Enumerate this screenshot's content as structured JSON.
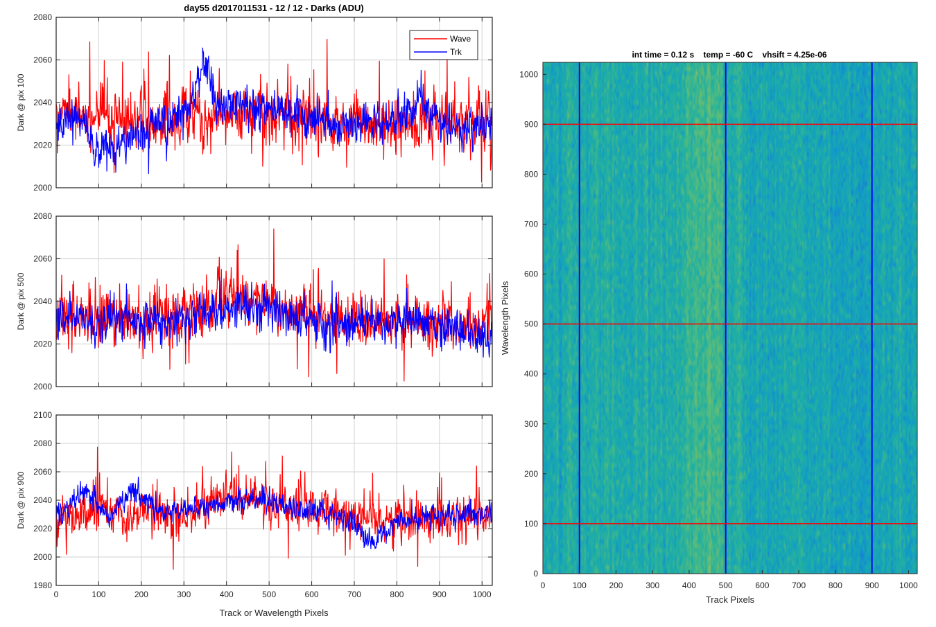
{
  "figure": {
    "title": "day55 d2017011531 - 12 / 12 - Darks (ADU)",
    "right_title": "int time = 0.12 s    temp = -60 C    vhsift = 4.25e-06",
    "left_xlabel": "Track or Wavelength Pixels"
  },
  "colors": {
    "wave": "#ff0000",
    "trk": "#0000ff",
    "grid": "#d9d9d9",
    "axis": "#262626"
  },
  "chart_data": [
    {
      "type": "line",
      "ylabel": "Dark @ pix 100",
      "xlim": [
        0,
        1024
      ],
      "ylim": [
        2000,
        2080
      ],
      "xticks": [
        0,
        100,
        200,
        300,
        400,
        500,
        600,
        700,
        800,
        900,
        1000
      ],
      "yticks": [
        2000,
        2020,
        2040,
        2060,
        2080
      ],
      "grid": true,
      "legend": {
        "location": "top-right",
        "entries": [
          "Wave",
          "Trk"
        ]
      },
      "series": [
        {
          "name": "Wave",
          "color": "#ff0000",
          "mean": 2033,
          "noise": 8.5,
          "spike_rate": 0.05,
          "spike_amp": 16,
          "trend_x": [
            0,
            100,
            200,
            300,
            400,
            500,
            600,
            700,
            800,
            900,
            1024
          ],
          "trend_y": [
            2033,
            2033,
            2031,
            2032,
            2036,
            2036,
            2032,
            2031,
            2030,
            2031,
            2032
          ]
        },
        {
          "name": "Trk",
          "color": "#0000ff",
          "mean": 2032,
          "noise": 5.5,
          "spike_rate": 0.015,
          "spike_amp": 10,
          "trend_x": [
            0,
            60,
            100,
            140,
            200,
            260,
            320,
            345,
            380,
            460,
            560,
            620,
            700,
            800,
            860,
            900,
            950,
            1024
          ],
          "trend_y": [
            2030,
            2032,
            2018,
            2020,
            2026,
            2030,
            2040,
            2058,
            2040,
            2038,
            2036,
            2032,
            2030,
            2032,
            2040,
            2030,
            2026,
            2030
          ]
        }
      ]
    },
    {
      "type": "line",
      "ylabel": "Dark @ pix 500",
      "xlim": [
        0,
        1024
      ],
      "ylim": [
        2000,
        2080
      ],
      "xticks": [
        0,
        100,
        200,
        300,
        400,
        500,
        600,
        700,
        800,
        900,
        1000
      ],
      "yticks": [
        2000,
        2020,
        2040,
        2060,
        2080
      ],
      "grid": true,
      "series": [
        {
          "name": "Wave",
          "color": "#ff0000",
          "mean": 2032,
          "noise": 8,
          "spike_rate": 0.05,
          "spike_amp": 18,
          "trend_x": [
            0,
            100,
            200,
            300,
            400,
            500,
            600,
            700,
            800,
            900,
            1024
          ],
          "trend_y": [
            2032,
            2031,
            2030,
            2034,
            2044,
            2040,
            2033,
            2029,
            2030,
            2030,
            2030
          ]
        },
        {
          "name": "Trk",
          "color": "#0000ff",
          "mean": 2031,
          "noise": 6,
          "spike_rate": 0.015,
          "spike_amp": 10,
          "trend_x": [
            0,
            100,
            200,
            300,
            400,
            500,
            600,
            700,
            800,
            900,
            1024
          ],
          "trend_y": [
            2031,
            2032,
            2030,
            2033,
            2038,
            2036,
            2031,
            2028,
            2030,
            2030,
            2022
          ]
        }
      ]
    },
    {
      "type": "line",
      "ylabel": "Dark @ pix 900",
      "xlim": [
        0,
        1024
      ],
      "ylim": [
        1980,
        2100
      ],
      "xticks": [
        0,
        100,
        200,
        300,
        400,
        500,
        600,
        700,
        800,
        900,
        1000
      ],
      "yticks": [
        1980,
        2000,
        2020,
        2040,
        2060,
        2080,
        2100
      ],
      "grid": true,
      "series": [
        {
          "name": "Wave",
          "color": "#ff0000",
          "mean": 2032,
          "noise": 9,
          "spike_rate": 0.05,
          "spike_amp": 20,
          "trend_x": [
            0,
            100,
            200,
            300,
            400,
            500,
            600,
            700,
            800,
            900,
            1024
          ],
          "trend_y": [
            2032,
            2031,
            2029,
            2032,
            2042,
            2040,
            2033,
            2029,
            2026,
            2028,
            2030
          ]
        },
        {
          "name": "Trk",
          "color": "#0000ff",
          "mean": 2031,
          "noise": 5,
          "spike_rate": 0.01,
          "spike_amp": 8,
          "trend_x": [
            0,
            70,
            120,
            185,
            250,
            350,
            450,
            550,
            650,
            700,
            745,
            800,
            900,
            1024
          ],
          "trend_y": [
            2030,
            2046,
            2028,
            2048,
            2030,
            2036,
            2042,
            2036,
            2030,
            2024,
            2008,
            2026,
            2030,
            2030
          ]
        }
      ]
    },
    {
      "type": "heatmap",
      "xlabel": "Track Pixels",
      "ylabel": "Wavelength Pixels",
      "xlim": [
        0,
        1024
      ],
      "ylim": [
        0,
        1024
      ],
      "xticks": [
        0,
        100,
        200,
        300,
        400,
        500,
        600,
        700,
        800,
        900,
        1000
      ],
      "yticks": [
        0,
        100,
        200,
        300,
        400,
        500,
        600,
        700,
        800,
        900,
        1000
      ],
      "grid": false,
      "colormap": [
        "#1e6fd8",
        "#109bc8",
        "#22b1a0",
        "#62be76",
        "#aeb94a"
      ],
      "vertical_markers": {
        "x": [
          100,
          500,
          900
        ],
        "color": "#0000ff"
      },
      "horizontal_markers": {
        "y": [
          100,
          500,
          900
        ],
        "color": "#ff0000"
      }
    }
  ]
}
